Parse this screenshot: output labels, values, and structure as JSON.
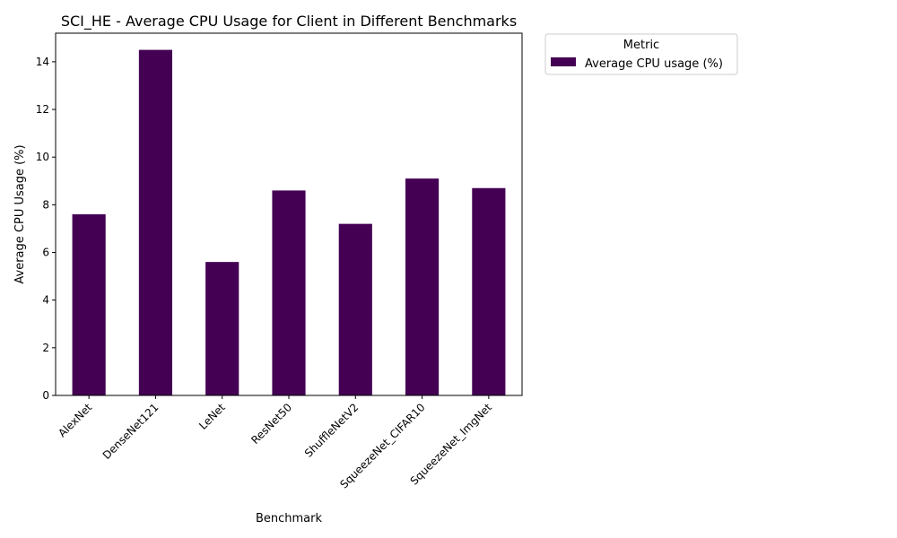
{
  "chart_data": {
    "type": "bar",
    "title": "SCI_HE - Average CPU Usage for Client in Different Benchmarks",
    "xlabel": "Benchmark",
    "ylabel": "Average CPU Usage (%)",
    "categories": [
      "AlexNet",
      "DenseNet121",
      "LeNet",
      "ResNet50",
      "ShuffleNetV2",
      "SqueezeNet_CIFAR10",
      "SqueezeNet_ImgNet"
    ],
    "series": [
      {
        "name": "Average CPU usage (%)",
        "values": [
          7.6,
          14.5,
          5.6,
          8.6,
          7.2,
          9.1,
          8.7
        ],
        "color": "#440154"
      }
    ],
    "ylim": [
      0,
      15.2
    ],
    "yticks": [
      0,
      2,
      4,
      6,
      8,
      10,
      12,
      14
    ],
    "grid": false,
    "legend": {
      "title": "Metric",
      "placement": "outside-top-right"
    }
  }
}
